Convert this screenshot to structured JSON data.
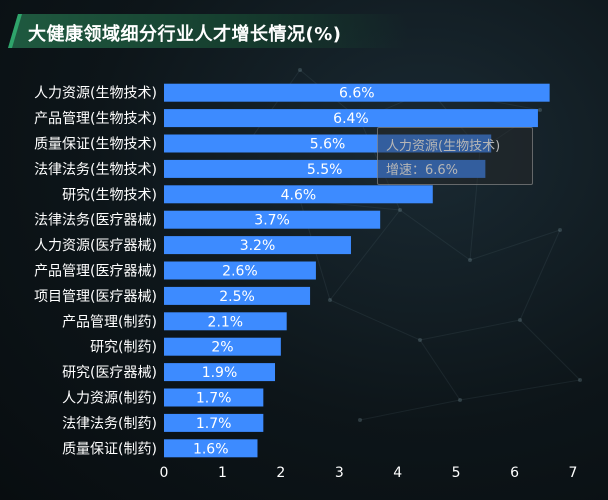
{
  "title": "大健康领域细分行业人才增长情况(%)",
  "colors": {
    "bar": "#3D8BFF",
    "label": "#ffffff",
    "tooltip_text": "#b6b6b6"
  },
  "tooltip": {
    "title": "人力资源(生物技术)",
    "value_line": "增速：6.6%"
  },
  "chart_data": {
    "type": "bar",
    "orientation": "horizontal",
    "categories": [
      "人力资源(生物技术)",
      "产品管理(生物技术)",
      "质量保证(生物技术)",
      "法律法务(生物技术)",
      "研究(生物技术)",
      "法律法务(医疗器械)",
      "人力资源(医疗器械)",
      "产品管理(医疗器械)",
      "项目管理(医疗器械)",
      "产品管理(制药)",
      "研究(制药)",
      "研究(医疗器械)",
      "人力资源(制药)",
      "法律法务(制药)",
      "质量保证(制药)"
    ],
    "values": [
      6.6,
      6.4,
      5.6,
      5.5,
      4.6,
      3.7,
      3.2,
      2.6,
      2.5,
      2.1,
      2,
      1.9,
      1.7,
      1.7,
      1.6
    ],
    "data_labels": [
      "6.6%",
      "6.4%",
      "5.6%",
      "5.5%",
      "4.6%",
      "3.7%",
      "3.2%",
      "2.6%",
      "2.5%",
      "2.1%",
      "2%",
      "1.9%",
      "1.7%",
      "1.7%",
      "1.6%"
    ],
    "xlim": [
      0,
      7
    ],
    "xticks": [
      0,
      1,
      2,
      3,
      4,
      5,
      6,
      7
    ],
    "grid": false,
    "legend": "none"
  }
}
